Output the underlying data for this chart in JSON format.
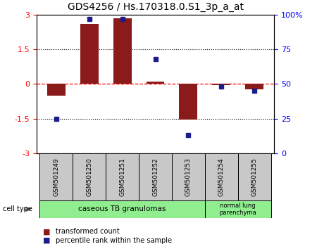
{
  "title": "GDS4256 / Hs.170318.0.S1_3p_a_at",
  "samples": [
    "GSM501249",
    "GSM501250",
    "GSM501251",
    "GSM501252",
    "GSM501253",
    "GSM501254",
    "GSM501255"
  ],
  "transformed_counts": [
    -0.5,
    2.6,
    2.85,
    0.12,
    -1.55,
    -0.05,
    -0.22
  ],
  "percentile_ranks": [
    25,
    97,
    97,
    68,
    13,
    48,
    45
  ],
  "ylim_left": [
    -3,
    3
  ],
  "ylim_right": [
    0,
    100
  ],
  "yticks_left": [
    -3,
    -1.5,
    0,
    1.5,
    3
  ],
  "ytick_labels_left": [
    "-3",
    "-1.5",
    "0",
    "1.5",
    "3"
  ],
  "yticks_right": [
    0,
    25,
    50,
    75,
    100
  ],
  "ytick_labels_right": [
    "0",
    "25",
    "50",
    "75",
    "100%"
  ],
  "bar_color": "#8B1A1A",
  "dot_color": "#1C1C8C",
  "group_bg_color": "#C8C8C8",
  "cell_type_color": "#90EE90",
  "legend_bar_label": "transformed count",
  "legend_dot_label": "percentile rank within the sample",
  "cell_type_label": "cell type",
  "group1_label": "caseous TB granulomas",
  "group1_samples": [
    0,
    1,
    2,
    3,
    4
  ],
  "group2_label": "normal lung\nparenchyma",
  "group2_samples": [
    5,
    6
  ]
}
